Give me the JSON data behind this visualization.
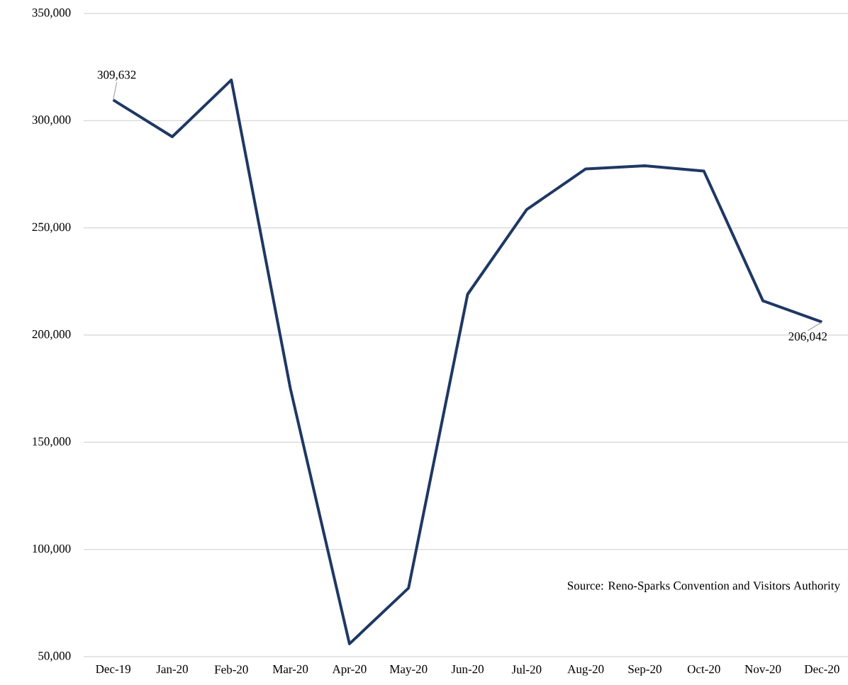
{
  "chart_data": {
    "type": "line",
    "categories": [
      "Dec-19",
      "Jan-20",
      "Feb-20",
      "Mar-20",
      "Apr-20",
      "May-20",
      "Jun-20",
      "Jul-20",
      "Aug-20",
      "Sep-20",
      "Oct-20",
      "Nov-20",
      "Dec-20"
    ],
    "values": [
      309632,
      292500,
      319000,
      175000,
      56000,
      82000,
      219000,
      258500,
      277500,
      279000,
      276500,
      216000,
      206042
    ],
    "value_labels": [
      "309,632",
      null,
      null,
      null,
      null,
      null,
      null,
      null,
      null,
      null,
      null,
      null,
      "206,042"
    ],
    "color": "#1f3864",
    "ylim": [
      50000,
      350000
    ],
    "yticks": [
      {
        "value": 50000,
        "label": "50,000"
      },
      {
        "value": 100000,
        "label": "100,000"
      },
      {
        "value": 150000,
        "label": "150,000"
      },
      {
        "value": 200000,
        "label": "200,000"
      },
      {
        "value": 250000,
        "label": "250,000"
      },
      {
        "value": 300000,
        "label": "300,000"
      },
      {
        "value": 350000,
        "label": "350,000"
      }
    ],
    "grid": "y",
    "annotations": [
      "Source: Reno-Sparks Convention and Visitors Authority"
    ]
  }
}
